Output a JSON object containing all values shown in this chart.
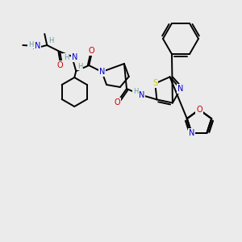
{
  "bg_color": "#ebebeb",
  "bond_color": "#000000",
  "atom_colors": {
    "N": "#0000cc",
    "O": "#cc0000",
    "S": "#cccc00",
    "C": "#000000",
    "H": "#5f9ea0"
  },
  "figsize": [
    3.0,
    3.0
  ],
  "dpi": 100,
  "lw": 1.4,
  "fs": 7.0,
  "fs_small": 6.0
}
